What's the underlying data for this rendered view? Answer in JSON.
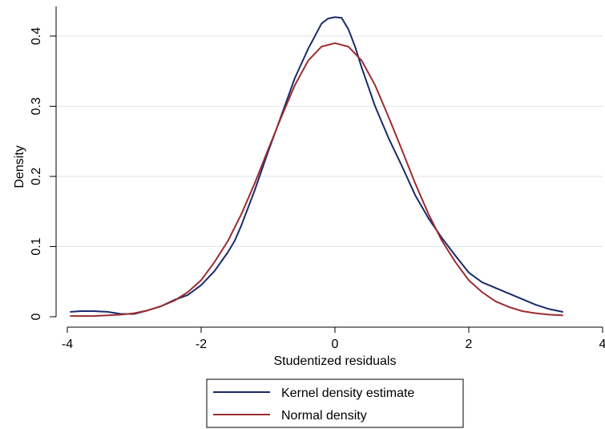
{
  "chart_data": {
    "type": "line",
    "title": "",
    "xlabel": "Studentized residuals",
    "ylabel": "Density",
    "xlim": [
      -4,
      4
    ],
    "ylim": [
      0,
      0.4
    ],
    "x_ticks": [
      -4,
      -2,
      0,
      2,
      4
    ],
    "x_tick_labels": [
      "-4",
      "-2",
      "0",
      "2",
      "4"
    ],
    "y_ticks": [
      0,
      0.1,
      0.2,
      0.3,
      0.4
    ],
    "y_tick_labels": [
      "0",
      "0.1",
      "0.2",
      "0.3",
      "0.4"
    ],
    "grid": "horizontal",
    "legend_position": "bottom",
    "series": [
      {
        "name": "Kernel density estimate",
        "color": "#1a2b6b",
        "x": [
          -3.95,
          -3.8,
          -3.6,
          -3.4,
          -3.2,
          -3.0,
          -2.8,
          -2.6,
          -2.4,
          -2.2,
          -2.0,
          -1.8,
          -1.6,
          -1.5,
          -1.4,
          -1.2,
          -1.0,
          -0.8,
          -0.6,
          -0.4,
          -0.2,
          -0.1,
          0.0,
          0.1,
          0.2,
          0.3,
          0.4,
          0.6,
          0.8,
          1.0,
          1.2,
          1.4,
          1.6,
          1.8,
          2.0,
          2.2,
          2.4,
          2.6,
          2.8,
          3.0,
          3.2,
          3.4
        ],
        "y": [
          0.007,
          0.008,
          0.008,
          0.007,
          0.004,
          0.004,
          0.009,
          0.015,
          0.024,
          0.031,
          0.045,
          0.065,
          0.092,
          0.108,
          0.13,
          0.18,
          0.235,
          0.287,
          0.34,
          0.382,
          0.418,
          0.425,
          0.427,
          0.426,
          0.41,
          0.385,
          0.355,
          0.3,
          0.255,
          0.215,
          0.173,
          0.14,
          0.112,
          0.087,
          0.063,
          0.049,
          0.041,
          0.033,
          0.025,
          0.017,
          0.011,
          0.007
        ]
      },
      {
        "name": "Normal density",
        "color": "#9b2d30",
        "x": [
          -3.95,
          -3.6,
          -3.2,
          -3.0,
          -2.8,
          -2.6,
          -2.4,
          -2.2,
          -2.0,
          -1.8,
          -1.6,
          -1.4,
          -1.2,
          -1.0,
          -0.8,
          -0.6,
          -0.4,
          -0.2,
          0.0,
          0.2,
          0.4,
          0.6,
          0.8,
          1.0,
          1.2,
          1.4,
          1.6,
          1.8,
          2.0,
          2.2,
          2.4,
          2.6,
          2.8,
          3.0,
          3.2,
          3.4
        ],
        "y": [
          0.001,
          0.001,
          0.003,
          0.005,
          0.009,
          0.015,
          0.023,
          0.035,
          0.052,
          0.078,
          0.108,
          0.146,
          0.19,
          0.238,
          0.285,
          0.33,
          0.365,
          0.385,
          0.39,
          0.385,
          0.365,
          0.33,
          0.285,
          0.238,
          0.19,
          0.146,
          0.108,
          0.078,
          0.052,
          0.035,
          0.022,
          0.014,
          0.008,
          0.005,
          0.003,
          0.002
        ]
      }
    ]
  }
}
